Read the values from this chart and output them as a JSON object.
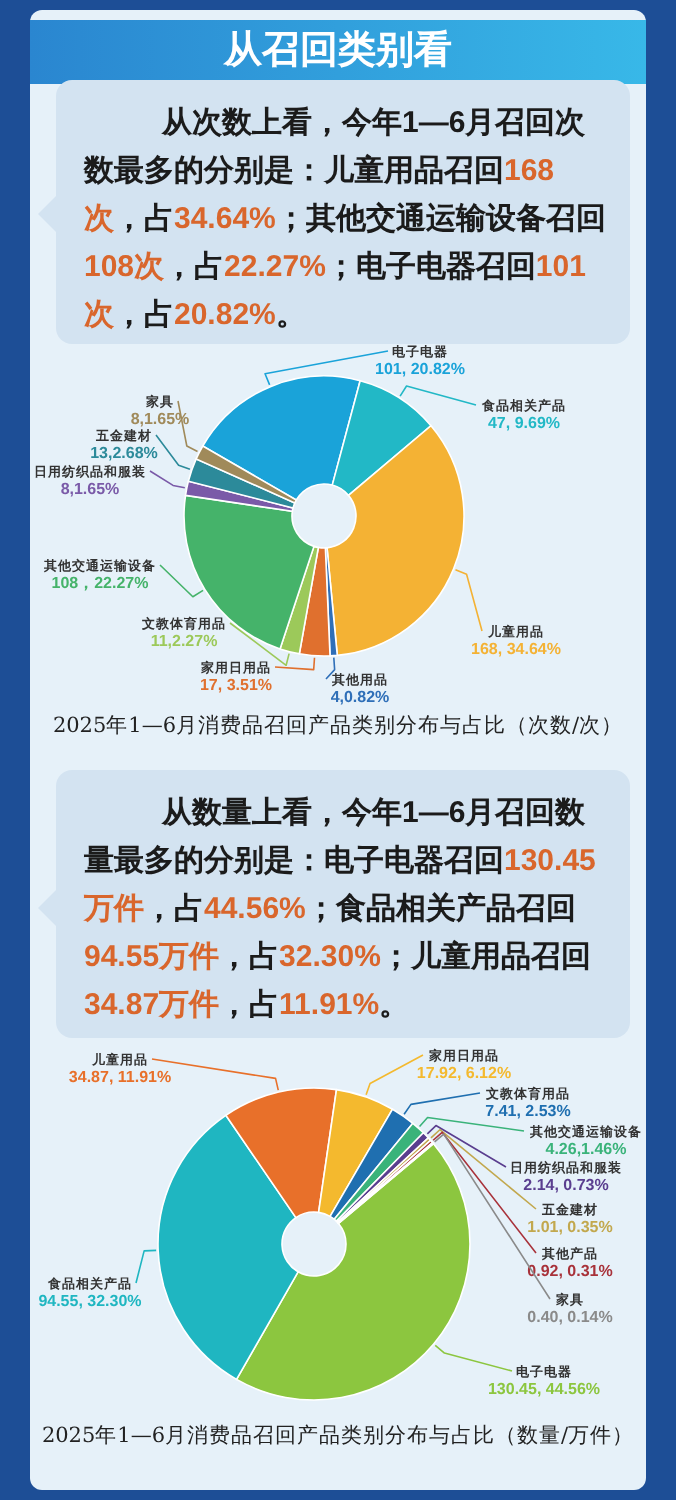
{
  "chart_data": [
    {
      "type": "donut",
      "title": "从召回类别看",
      "subtitle": "从次数上看，今年1—6月召回次数最多的分别是：儿童用品召回168次，占34.64%；其他交通运输设备召回108次，占22.27%；电子电器召回101次，占20.82%。",
      "categories": [
        "电子电器",
        "食品相关产品",
        "儿童用品",
        "其他用品",
        "家用日用品",
        "文教体育用品",
        "其他交通运输设备",
        "日用纺织品和服装",
        "五金建材",
        "家具"
      ],
      "values": [
        101,
        47,
        168,
        4,
        17,
        11,
        108,
        8,
        13,
        8
      ],
      "colors": [
        "#1aa3d9",
        "#22b8c6",
        "#f4b234",
        "#2f6fb8",
        "#e0702e",
        "#9cc95a",
        "#45b36a",
        "#7a5aa8",
        "#2c8a9a",
        "#a08a5a"
      ],
      "value_labels": [
        "101, 20.82%",
        "47, 9.69%",
        "168, 34.64%",
        "4,0.82%",
        "17, 3.51%",
        "11,2.27%",
        "108，22.27%",
        "8,1.65%",
        "13,2.68%",
        "8,1.65%"
      ],
      "annotations": [
        "2025年1—6月消费品召回产品类别分布与占比（次数/次）"
      ]
    },
    {
      "type": "donut",
      "subtitle": "从数量上看，今年1—6月召回数量最多的分别是：电子电器召回130.45万件，占44.56%；食品相关产品召回94.55万件，占32.30%；儿童用品召回34.87万件，占11.91%。",
      "categories": [
        "电子电器",
        "食品相关产品",
        "儿童用品",
        "家用日用品",
        "文教体育用品",
        "其他交通运输设备",
        "日用纺织品和服装",
        "五金建材",
        "其他产品",
        "家具"
      ],
      "values": [
        130.45,
        94.55,
        34.87,
        17.92,
        7.41,
        4.26,
        2.14,
        1.01,
        0.92,
        0.4
      ],
      "colors": [
        "#8cc63f",
        "#1fb6c1",
        "#e8702a",
        "#f4b92e",
        "#1f6fb0",
        "#3ab37a",
        "#5a3e8f",
        "#c2a84e",
        "#a8323a",
        "#8a8a8a"
      ],
      "value_labels": [
        "130.45, 44.56%",
        "94.55, 32.30%",
        "34.87, 11.91%",
        "17.92, 6.12%",
        "7.41, 2.53%",
        "4.26,1.46%",
        "2.14, 0.73%",
        "1.01, 0.35%",
        "0.92, 0.31%",
        "0.40, 0.14%"
      ],
      "annotations": [
        "2025年1—6月消费品召回产品类别分布与占比（数量/万件）"
      ]
    }
  ]
}
